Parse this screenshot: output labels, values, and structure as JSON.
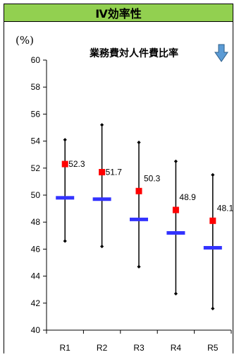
{
  "header": {
    "title": "Ⅳ効率性"
  },
  "chart_data": {
    "type": "scatter",
    "title": "業務費対人件費比率",
    "unit_label": "(%)",
    "categories": [
      "R1",
      "R2",
      "R3",
      "R4",
      "R5"
    ],
    "ylim": [
      40,
      60
    ],
    "yticks": [
      40,
      42,
      44,
      46,
      48,
      50,
      52,
      54,
      56,
      58,
      60
    ],
    "grid": false,
    "trend_indicator": "down-arrow",
    "colors": {
      "point": "#ff0000",
      "median": "#3333ff",
      "range": "#000000",
      "arrow": "#5b9bd5"
    },
    "series": [
      {
        "role": "value",
        "values": [
          52.3,
          51.7,
          50.3,
          48.9,
          48.1
        ]
      },
      {
        "role": "median",
        "values": [
          49.8,
          49.7,
          48.2,
          47.2,
          46.1
        ]
      },
      {
        "role": "max",
        "values": [
          54.1,
          55.2,
          53.9,
          52.5,
          51.5
        ]
      },
      {
        "role": "min",
        "values": [
          46.6,
          46.2,
          44.7,
          42.7,
          41.6
        ]
      }
    ]
  }
}
